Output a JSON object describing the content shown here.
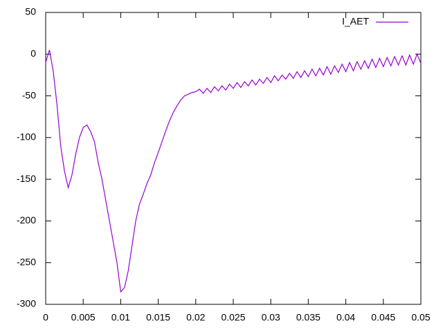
{
  "chart_data": {
    "type": "line",
    "x": [
      0,
      0.0005,
      0.001,
      0.0015,
      0.002,
      0.0025,
      0.003,
      0.0035,
      0.004,
      0.0045,
      0.005,
      0.0055,
      0.006,
      0.0065,
      0.007,
      0.0075,
      0.008,
      0.0085,
      0.009,
      0.0095,
      0.01,
      0.0105,
      0.011,
      0.0115,
      0.012,
      0.0125,
      0.013,
      0.0135,
      0.014,
      0.0145,
      0.015,
      0.0155,
      0.016,
      0.0165,
      0.017,
      0.0175,
      0.018,
      0.0185,
      0.019,
      0.0195,
      0.02,
      0.0205,
      0.021,
      0.0215,
      0.022,
      0.0225,
      0.023,
      0.0235,
      0.024,
      0.0245,
      0.025,
      0.0255,
      0.026,
      0.0265,
      0.027,
      0.0275,
      0.028,
      0.0285,
      0.029,
      0.0295,
      0.03,
      0.0305,
      0.031,
      0.0315,
      0.032,
      0.0325,
      0.033,
      0.0335,
      0.034,
      0.0345,
      0.035,
      0.0355,
      0.036,
      0.0365,
      0.037,
      0.0375,
      0.038,
      0.0385,
      0.039,
      0.0395,
      0.04,
      0.0405,
      0.041,
      0.0415,
      0.042,
      0.0425,
      0.043,
      0.0435,
      0.044,
      0.0445,
      0.045,
      0.0455,
      0.046,
      0.0465,
      0.047,
      0.0475,
      0.048,
      0.0485,
      0.049,
      0.0495,
      0.05
    ],
    "series": [
      {
        "name": "I_AET",
        "color": "#9400d3",
        "values": [
          -10,
          5,
          -20,
          -60,
          -110,
          -140,
          -160,
          -145,
          -120,
          -100,
          -88,
          -85,
          -93,
          -105,
          -130,
          -150,
          -175,
          -200,
          -225,
          -250,
          -285,
          -280,
          -260,
          -230,
          -200,
          -180,
          -168,
          -155,
          -145,
          -130,
          -118,
          -105,
          -92,
          -80,
          -70,
          -62,
          -55,
          -50,
          -48,
          -46,
          -45,
          -42,
          -47,
          -41,
          -46,
          -39,
          -44,
          -38,
          -43,
          -36,
          -41,
          -34,
          -40,
          -33,
          -38,
          -31,
          -37,
          -30,
          -35,
          -28,
          -34,
          -26,
          -32,
          -25,
          -30,
          -23,
          -29,
          -21,
          -28,
          -20,
          -27,
          -18,
          -26,
          -17,
          -25,
          -15,
          -24,
          -14,
          -22,
          -12,
          -21,
          -10,
          -20,
          -9,
          -18,
          -8,
          -17,
          -6,
          -16,
          -5,
          -15,
          -4,
          -14,
          -3,
          -13,
          -2,
          -13,
          -1,
          -12,
          0,
          -11
        ]
      }
    ],
    "xlim": [
      0,
      0.05
    ],
    "xticks": [
      0,
      0.005,
      0.01,
      0.015,
      0.02,
      0.025,
      0.03,
      0.035,
      0.04,
      0.045,
      0.05
    ],
    "ylim": [
      -300,
      50
    ],
    "yticks": [
      -300,
      -250,
      -200,
      -150,
      -100,
      -50,
      0,
      50
    ],
    "grid": false,
    "legend": "top-right"
  }
}
